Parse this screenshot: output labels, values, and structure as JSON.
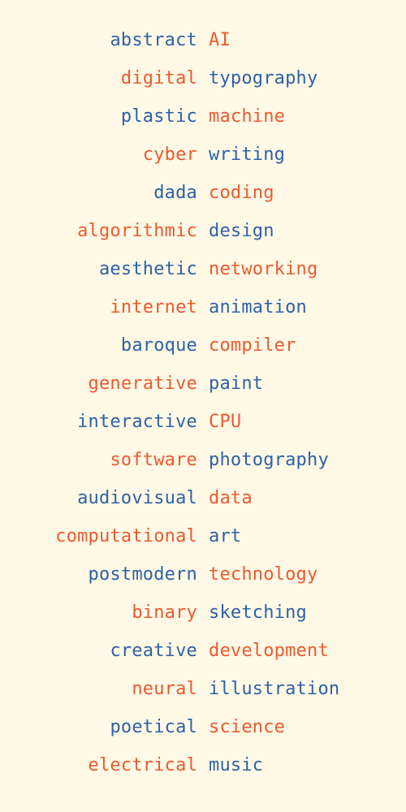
{
  "colors": {
    "background": "#fff9e6",
    "blue": "#2f61a6",
    "orange": "#ec5a30"
  },
  "pairs": [
    {
      "left": "abstract",
      "right": "AI"
    },
    {
      "left": "digital",
      "right": "typography"
    },
    {
      "left": "plastic",
      "right": "machine"
    },
    {
      "left": "cyber",
      "right": "writing"
    },
    {
      "left": "dada",
      "right": "coding"
    },
    {
      "left": "algorithmic",
      "right": "design"
    },
    {
      "left": "aesthetic",
      "right": "networking"
    },
    {
      "left": "internet",
      "right": "animation"
    },
    {
      "left": "baroque",
      "right": "compiler"
    },
    {
      "left": "generative",
      "right": "paint"
    },
    {
      "left": "interactive",
      "right": "CPU"
    },
    {
      "left": "software",
      "right": "photography"
    },
    {
      "left": "audiovisual",
      "right": "data"
    },
    {
      "left": "computational",
      "right": "art"
    },
    {
      "left": "postmodern",
      "right": "technology"
    },
    {
      "left": "binary",
      "right": "sketching"
    },
    {
      "left": "creative",
      "right": "development"
    },
    {
      "left": "neural",
      "right": "illustration"
    },
    {
      "left": "poetical",
      "right": "science"
    },
    {
      "left": "electrical",
      "right": "music"
    }
  ]
}
